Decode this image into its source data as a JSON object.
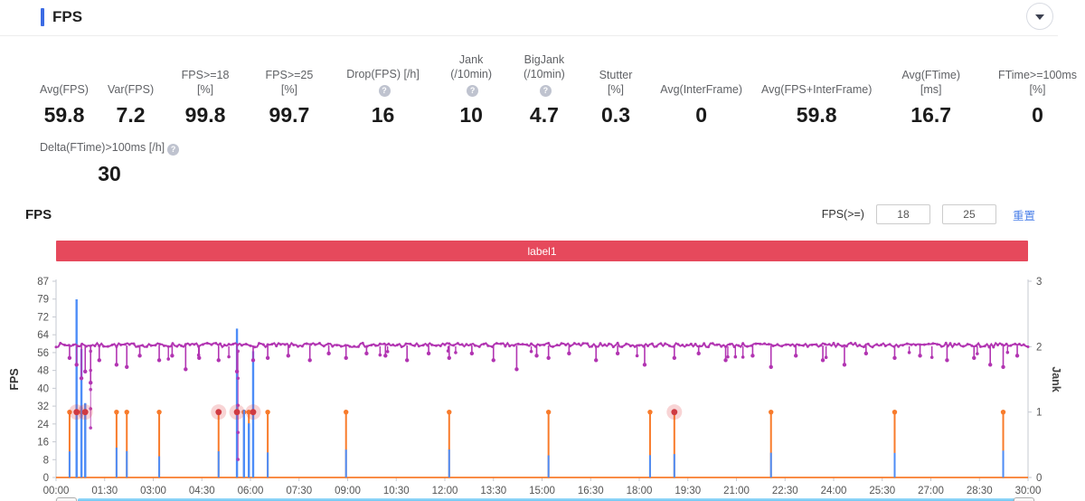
{
  "header": {
    "title": "FPS"
  },
  "stats": [
    {
      "label": "Avg(FPS)",
      "value": "59.8",
      "help": false
    },
    {
      "label": "Var(FPS)",
      "value": "7.2",
      "help": false
    },
    {
      "label": "FPS>=18 [%]",
      "value": "99.8",
      "help": false
    },
    {
      "label": "FPS>=25 [%]",
      "value": "99.7",
      "help": false
    },
    {
      "label": "Drop(FPS) [/h]",
      "value": "16",
      "help": true
    },
    {
      "label": "Jank\n(/10min)",
      "value": "10",
      "help": true
    },
    {
      "label": "BigJank\n(/10min)",
      "value": "4.7",
      "help": true
    },
    {
      "label": "Stutter [%]",
      "value": "0.3",
      "help": false
    },
    {
      "label": "Avg(InterFrame)",
      "value": "0",
      "help": false
    },
    {
      "label": "Avg(FPS+InterFrame)",
      "value": "59.8",
      "help": false
    },
    {
      "label": "Avg(FTime) [ms]",
      "value": "16.7",
      "help": false
    },
    {
      "label": "FTime>=100ms [%]",
      "value": "0",
      "help": false
    }
  ],
  "stats_row2": [
    {
      "label": "Delta(FTime)>100ms [/h]",
      "value": "30",
      "help": true
    }
  ],
  "section": {
    "title": "FPS",
    "filter_label": "FPS(>=)",
    "threshold1": "18",
    "threshold2": "25",
    "reset_label": "重置"
  },
  "colors": {
    "accent_bar": "#3b6be4",
    "link": "#4a7fe8",
    "label_text": "#606266",
    "value_text": "#1a1a1a"
  },
  "chart_data": {
    "type": "line",
    "banner_label": "label1",
    "banner_color": "#e6495c",
    "x": {
      "total_seconds": 1800,
      "tick_labels": [
        "00:00",
        "01:30",
        "03:00",
        "04:30",
        "06:00",
        "07:30",
        "09:00",
        "10:30",
        "12:00",
        "13:30",
        "15:00",
        "16:30",
        "18:00",
        "19:30",
        "21:00",
        "22:30",
        "24:00",
        "25:30",
        "27:00",
        "28:30",
        "30:00"
      ]
    },
    "y_left": {
      "title": "FPS",
      "max": 87,
      "ticks": [
        87,
        79,
        72,
        64,
        56,
        48,
        40,
        32,
        24,
        16,
        8,
        0
      ]
    },
    "y_right": {
      "title": "Jank",
      "max": 3,
      "ticks": [
        3,
        2,
        1,
        0
      ]
    },
    "fps_line": {
      "name": "FPS",
      "color": "#b235b2",
      "baseline": 58.7,
      "noise": 1.8,
      "dips": [
        [
          25,
          53
        ],
        [
          38,
          50
        ],
        [
          47,
          44
        ],
        [
          54,
          47
        ],
        [
          64,
          42
        ],
        [
          80,
          52
        ],
        [
          112,
          50
        ],
        [
          131,
          49
        ],
        [
          155,
          54
        ],
        [
          191,
          52
        ],
        [
          215,
          54
        ],
        [
          240,
          48
        ],
        [
          265,
          53
        ],
        [
          301,
          52
        ],
        [
          335,
          47
        ],
        [
          365,
          52
        ],
        [
          392,
          53
        ],
        [
          430,
          54
        ],
        [
          470,
          52
        ],
        [
          505,
          55
        ],
        [
          537,
          53
        ],
        [
          575,
          55
        ],
        [
          610,
          54
        ],
        [
          650,
          52
        ],
        [
          690,
          55
        ],
        [
          728,
          53
        ],
        [
          770,
          55
        ],
        [
          810,
          52
        ],
        [
          853,
          48
        ],
        [
          890,
          54
        ],
        [
          912,
          53
        ],
        [
          950,
          55
        ],
        [
          1000,
          52
        ],
        [
          1040,
          55
        ],
        [
          1090,
          50
        ],
        [
          1145,
          53
        ],
        [
          1190,
          55
        ],
        [
          1240,
          52
        ],
        [
          1290,
          54
        ],
        [
          1324,
          49
        ],
        [
          1370,
          54
        ],
        [
          1420,
          52
        ],
        [
          1460,
          50
        ],
        [
          1500,
          55
        ],
        [
          1553,
          53
        ],
        [
          1600,
          54
        ],
        [
          1650,
          52
        ],
        [
          1700,
          53
        ],
        [
          1730,
          50
        ],
        [
          1754,
          49
        ],
        [
          1780,
          54
        ]
      ]
    },
    "plunges": [
      [
        64,
        22
      ],
      [
        337,
        8
      ]
    ],
    "fps_spikes": {
      "color": "#4d8df8",
      "points": [
        [
          38,
          79
        ],
        [
          47,
          57
        ],
        [
          54,
          33
        ],
        [
          335,
          66
        ],
        [
          348,
          30
        ],
        [
          357,
          24
        ],
        [
          365,
          56
        ]
      ]
    },
    "jank_series": {
      "name": "Jank",
      "color": "#f87b2b",
      "event_value": 1,
      "event_times_sec": [
        25,
        38,
        47,
        54,
        112,
        131,
        191,
        301,
        335,
        348,
        357,
        365,
        392,
        537,
        728,
        912,
        1100,
        1145,
        1324,
        1553,
        1754
      ]
    },
    "big_jank": {
      "name": "BigJank",
      "color": "#cf3a42",
      "halo": "rgba(222,57,65,0.22)",
      "event_times_sec": [
        38,
        54,
        301,
        335,
        365,
        1145
      ]
    },
    "scrollbar_color": "#35a9e9"
  }
}
